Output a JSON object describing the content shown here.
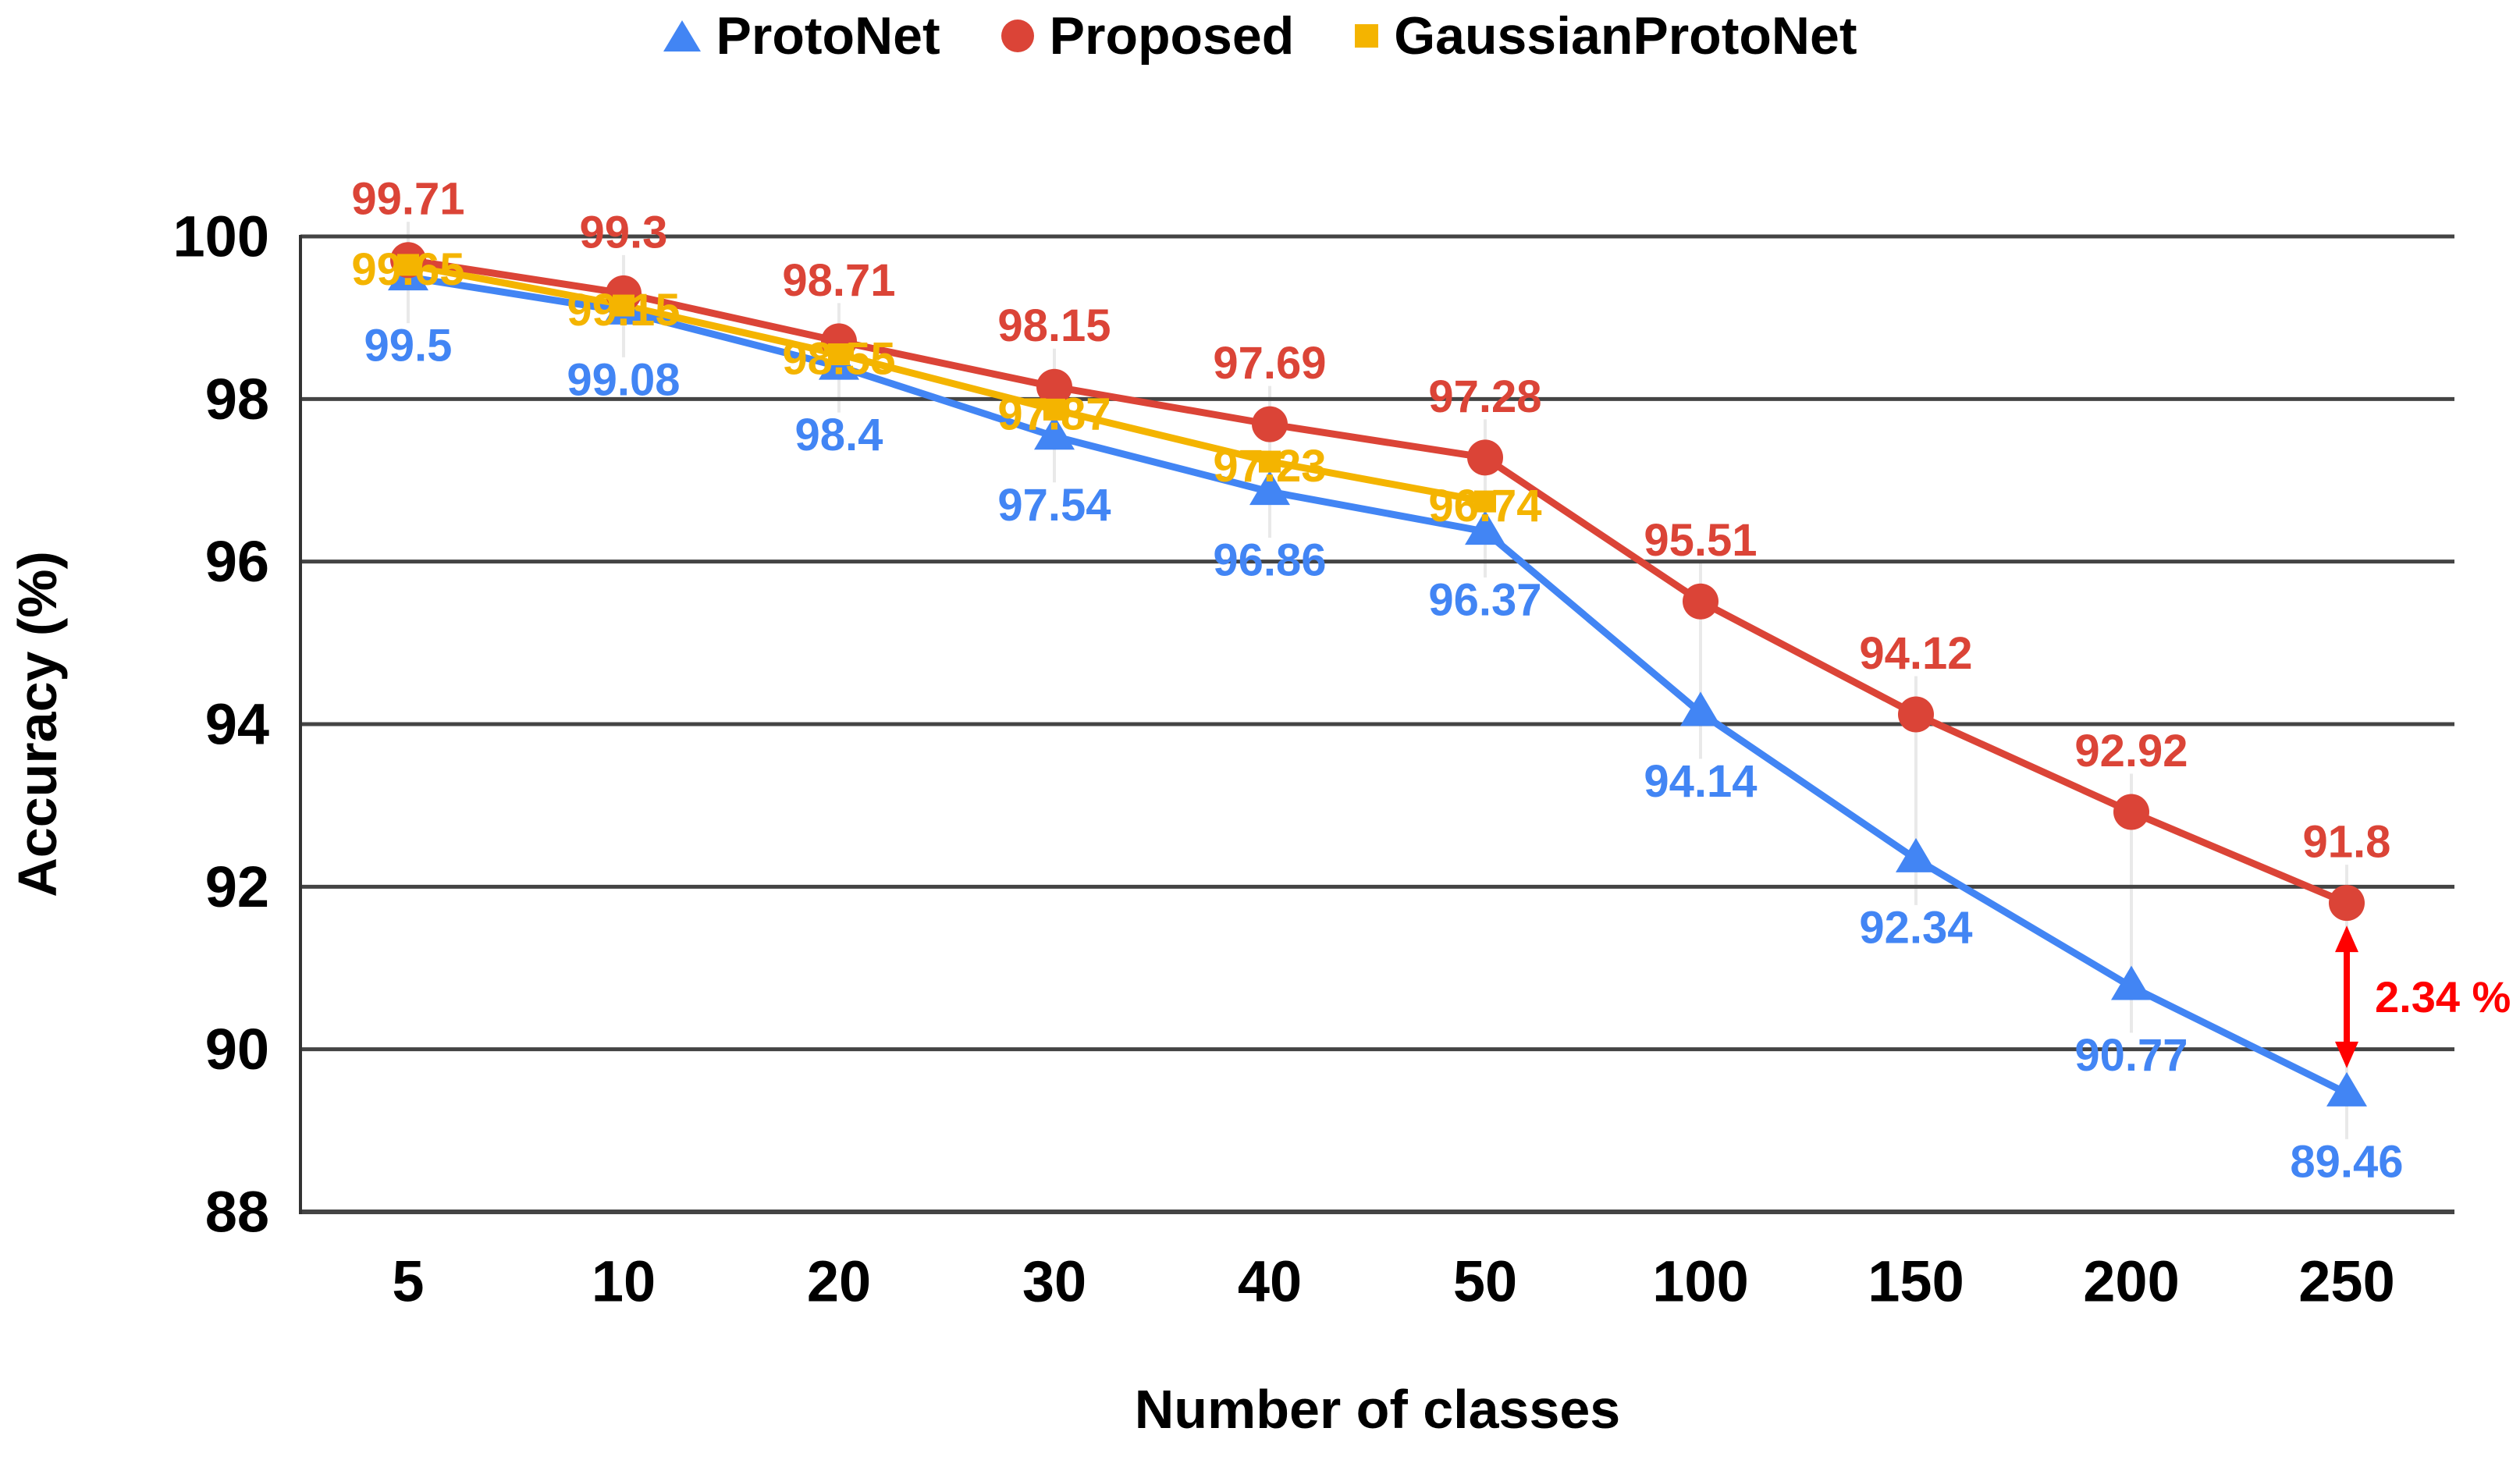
{
  "legend": {
    "items": [
      {
        "label": "ProtoNet",
        "color": "#4285F4",
        "marker": "triangle"
      },
      {
        "label": "Proposed",
        "color": "#DB4437",
        "marker": "circle"
      },
      {
        "label": "GaussianProtoNet",
        "color": "#F4B400",
        "marker": "square"
      }
    ]
  },
  "chart_data": {
    "type": "line",
    "title": "",
    "xlabel": "Number of classes",
    "ylabel": "Accuracy (%)",
    "categories": [
      "5",
      "10",
      "20",
      "30",
      "40",
      "50",
      "100",
      "150",
      "200",
      "250"
    ],
    "series": [
      {
        "name": "ProtoNet",
        "color": "#4285F4",
        "marker": "triangle",
        "values": [
          99.5,
          99.08,
          98.4,
          97.54,
          96.86,
          96.37,
          94.14,
          92.34,
          90.77,
          89.46
        ]
      },
      {
        "name": "Proposed",
        "color": "#DB4437",
        "marker": "circle",
        "values": [
          99.71,
          99.3,
          98.71,
          98.15,
          97.69,
          97.28,
          95.51,
          94.12,
          92.92,
          91.8
        ]
      },
      {
        "name": "GaussianProtoNet",
        "color": "#F4B400",
        "marker": "square",
        "values": [
          99.65,
          99.15,
          98.55,
          97.87,
          97.23,
          96.74,
          null,
          null,
          null,
          null
        ]
      }
    ],
    "y_ticks": [
      88,
      90,
      92,
      94,
      96,
      98,
      100
    ],
    "ylim": [
      88,
      100
    ],
    "grid": "horizontal",
    "legend_position": "top",
    "annotation": {
      "text": "2.34 %",
      "color": "#FF0000",
      "category": "250",
      "from_value": 91.8,
      "to_value": 89.46
    }
  },
  "colors": {
    "gridline": "#444444",
    "axis": "#333333",
    "leader_line": "#e9e9e9",
    "tick_text": "#000000",
    "background": "#ffffff"
  }
}
